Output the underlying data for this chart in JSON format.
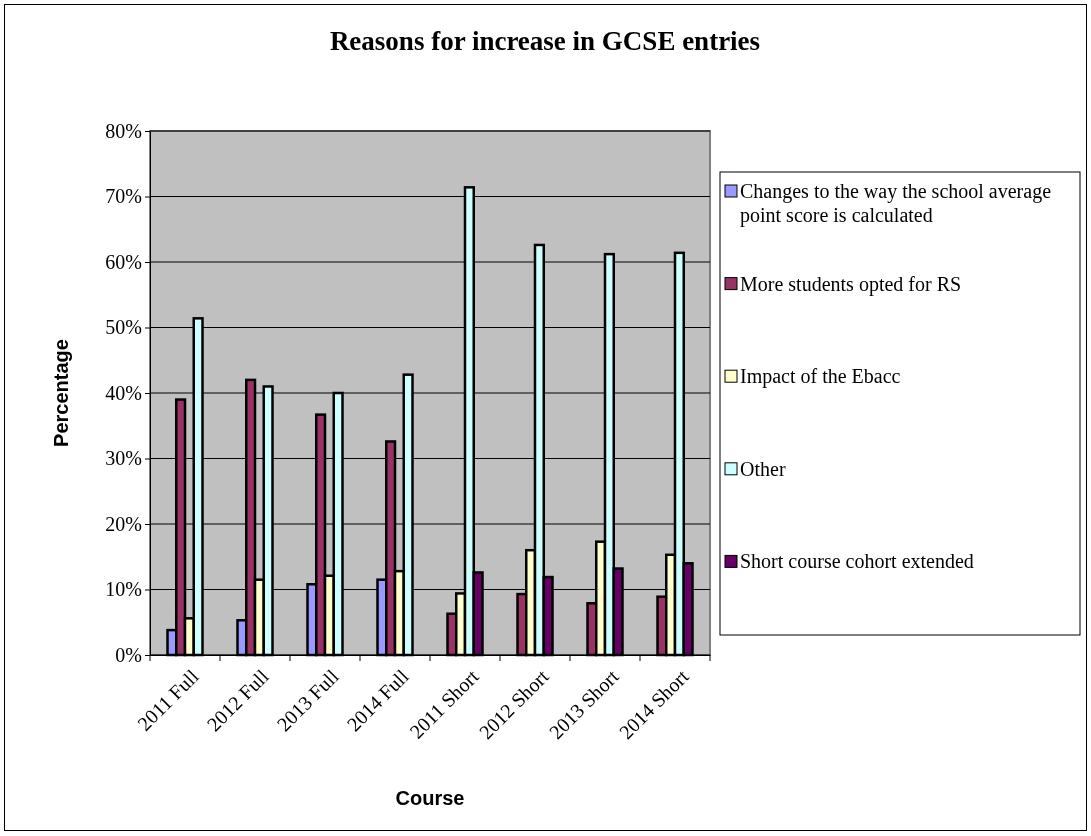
{
  "chart_data": {
    "type": "bar",
    "title": "Reasons for increase in GCSE entries",
    "xlabel": "Course",
    "ylabel": "Percentage",
    "categories": [
      "2011 Full",
      "2012 Full",
      "2013 Full",
      "2014 Full",
      "2011 Short",
      "2012 Short",
      "2013 Short",
      "2014 Short"
    ],
    "series": [
      {
        "name": "Changes to the way the school average point score is calculated",
        "color": "#9999ff",
        "values": [
          3.8,
          5.3,
          10.8,
          11.5,
          null,
          null,
          null,
          null
        ]
      },
      {
        "name": "More students opted for RS",
        "color": "#993366",
        "values": [
          39,
          42,
          36.7,
          32.6,
          6.3,
          9.3,
          7.9,
          8.9
        ]
      },
      {
        "name": "Impact of the Ebacc",
        "color": "#ffffcc",
        "values": [
          5.6,
          11.5,
          12.1,
          12.8,
          9.4,
          16,
          17.3,
          15.3
        ]
      },
      {
        "name": "Other",
        "color": "#ccffff",
        "values": [
          51.4,
          41,
          40,
          42.8,
          71.4,
          62.6,
          61.2,
          61.4
        ]
      },
      {
        "name": "Short course cohort extended",
        "color": "#660066",
        "values": [
          null,
          null,
          null,
          null,
          12.6,
          11.9,
          13.2,
          14
        ]
      }
    ],
    "ylim": [
      0,
      80
    ],
    "yticks": [
      {
        "value": 0,
        "label": "0%"
      },
      {
        "value": 10,
        "label": "10%"
      },
      {
        "value": 20,
        "label": "20%"
      },
      {
        "value": 30,
        "label": "30%"
      },
      {
        "value": 40,
        "label": "40%"
      },
      {
        "value": 50,
        "label": "50%"
      },
      {
        "value": 60,
        "label": "60%"
      },
      {
        "value": 70,
        "label": "70%"
      },
      {
        "value": 80,
        "label": "80%"
      }
    ],
    "grid": "y",
    "legend": "right"
  }
}
